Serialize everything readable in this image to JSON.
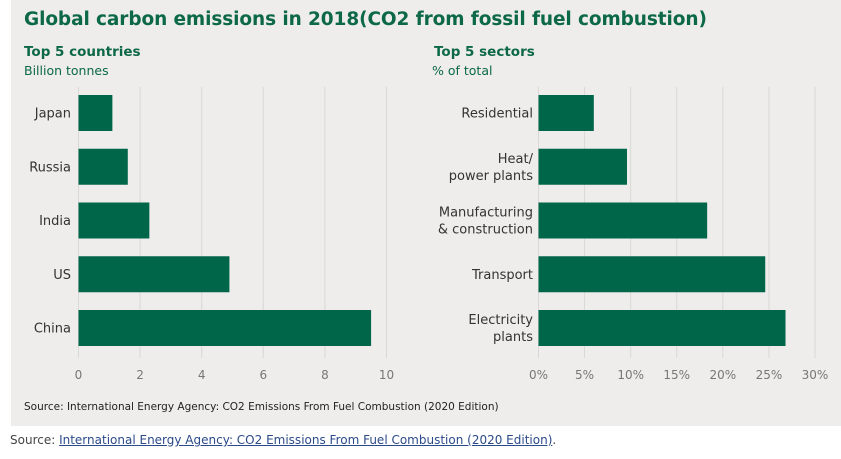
{
  "title": "Global carbon emissions in 2018(CO2 from fossil fuel combustion)",
  "panel_source": "Source: International Energy Agency: CO2 Emissions From Fuel Combustion (2020 Edition)",
  "page_source": {
    "prefix": "Source: ",
    "link_text": "International Energy Agency: CO2 Emissions From Fuel Combustion (2020 Edition)",
    "suffix": "."
  },
  "colors": {
    "bar": "#00664a",
    "title": "#0c6848",
    "gridline": "#d9d8d6",
    "panel_bg": "#eeedeb"
  },
  "chart_data": [
    {
      "type": "bar",
      "orientation": "horizontal",
      "title": "Top 5 countries",
      "subtitle": "Billion tonnes",
      "categories": [
        "Japan",
        "Russia",
        "India",
        "US",
        "China"
      ],
      "category_lines": [
        [
          "Japan"
        ],
        [
          "Russia"
        ],
        [
          "India"
        ],
        [
          "US"
        ],
        [
          "China"
        ]
      ],
      "values": [
        1.1,
        1.6,
        2.3,
        4.9,
        9.5
      ],
      "xlim": [
        0,
        10
      ],
      "ticks": [
        0,
        2,
        4,
        6,
        8,
        10
      ],
      "tick_labels": [
        "0",
        "2",
        "4",
        "6",
        "8",
        "10"
      ],
      "grid": true,
      "legend": "none"
    },
    {
      "type": "bar",
      "orientation": "horizontal",
      "title": "Top 5 sectors",
      "subtitle": "% of total",
      "categories": [
        "Residential",
        "Heat/ power plants",
        "Manufacturing & construction",
        "Transport",
        "Electricity plants"
      ],
      "category_lines": [
        [
          "Residential"
        ],
        [
          "Heat/",
          "power plants"
        ],
        [
          "Manufacturing",
          "& construction"
        ],
        [
          "Transport"
        ],
        [
          "Electricity",
          "plants"
        ]
      ],
      "values": [
        6.0,
        9.6,
        18.3,
        24.6,
        26.8
      ],
      "xlim": [
        0,
        30
      ],
      "ticks": [
        0,
        5,
        10,
        15,
        20,
        25,
        30
      ],
      "tick_labels": [
        "0%",
        "5%",
        "10%",
        "15%",
        "20%",
        "25%",
        "30%"
      ],
      "grid": true,
      "legend": "none"
    }
  ]
}
